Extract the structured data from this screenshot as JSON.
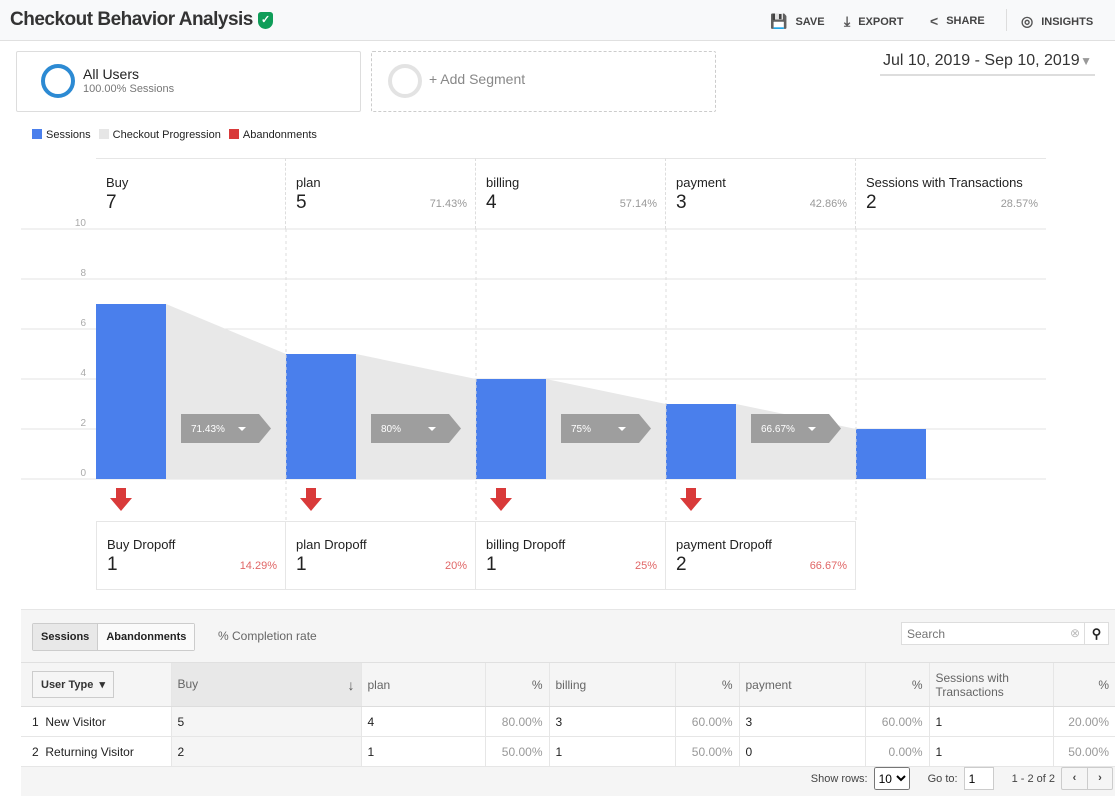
{
  "header": {
    "title": "Checkout Behavior Analysis",
    "actions": [
      {
        "icon": "save-icon",
        "label": "SAVE"
      },
      {
        "icon": "export-icon",
        "label": "EXPORT"
      },
      {
        "icon": "share-icon",
        "label": "SHARE"
      },
      {
        "icon": "insights-icon",
        "label": "INSIGHTS"
      }
    ]
  },
  "segments": {
    "primary": {
      "name": "All Users",
      "sub": "100.00% Sessions"
    },
    "add_label": "+ Add Segment"
  },
  "date_range": "Jul 10, 2019 - Sep 10, 2019",
  "legend": [
    {
      "label": "Sessions",
      "color": "#4a7fec"
    },
    {
      "label": "Checkout Progression",
      "color": "#e6e6e6"
    },
    {
      "label": "Abandonments",
      "color": "#d93a3a"
    }
  ],
  "chart_data": {
    "type": "bar",
    "yticks": [
      0,
      2,
      4,
      6,
      8,
      10
    ],
    "ylim": [
      0,
      10
    ],
    "stages": [
      {
        "name": "Buy",
        "value": 7,
        "pct": ""
      },
      {
        "name": "plan",
        "value": 5,
        "pct": "71.43%"
      },
      {
        "name": "billing",
        "value": 4,
        "pct": "57.14%"
      },
      {
        "name": "payment",
        "value": 3,
        "pct": "42.86%"
      },
      {
        "name": "Sessions with Transactions",
        "value": 2,
        "pct": "28.57%"
      }
    ],
    "progression": [
      "71.43%",
      "80%",
      "75%",
      "66.67%"
    ],
    "dropoffs": [
      {
        "name": "Buy Dropoff",
        "value": 1,
        "pct": "14.29%"
      },
      {
        "name": "plan Dropoff",
        "value": 1,
        "pct": "20%"
      },
      {
        "name": "billing Dropoff",
        "value": 1,
        "pct": "25%"
      },
      {
        "name": "payment Dropoff",
        "value": 2,
        "pct": "66.67%"
      }
    ]
  },
  "table": {
    "tabs": [
      "Sessions",
      "Abandonments"
    ],
    "completion_label": "% Completion rate",
    "search_placeholder": "Search",
    "dim_button": "User Type",
    "columns": [
      "Buy",
      "plan",
      "%",
      "billing",
      "%",
      "payment",
      "%",
      "Sessions with Transactions",
      "%"
    ],
    "rows": [
      [
        "1",
        "New Visitor",
        "5",
        "4",
        "80.00%",
        "3",
        "60.00%",
        "3",
        "60.00%",
        "1",
        "20.00%"
      ],
      [
        "2",
        "Returning Visitor",
        "2",
        "1",
        "50.00%",
        "1",
        "50.00%",
        "0",
        "0.00%",
        "1",
        "50.00%"
      ]
    ],
    "footer": {
      "show_rows_label": "Show rows:",
      "show_rows": "10",
      "goto_label": "Go to:",
      "goto": "1",
      "range": "1 - 2 of 2"
    }
  }
}
